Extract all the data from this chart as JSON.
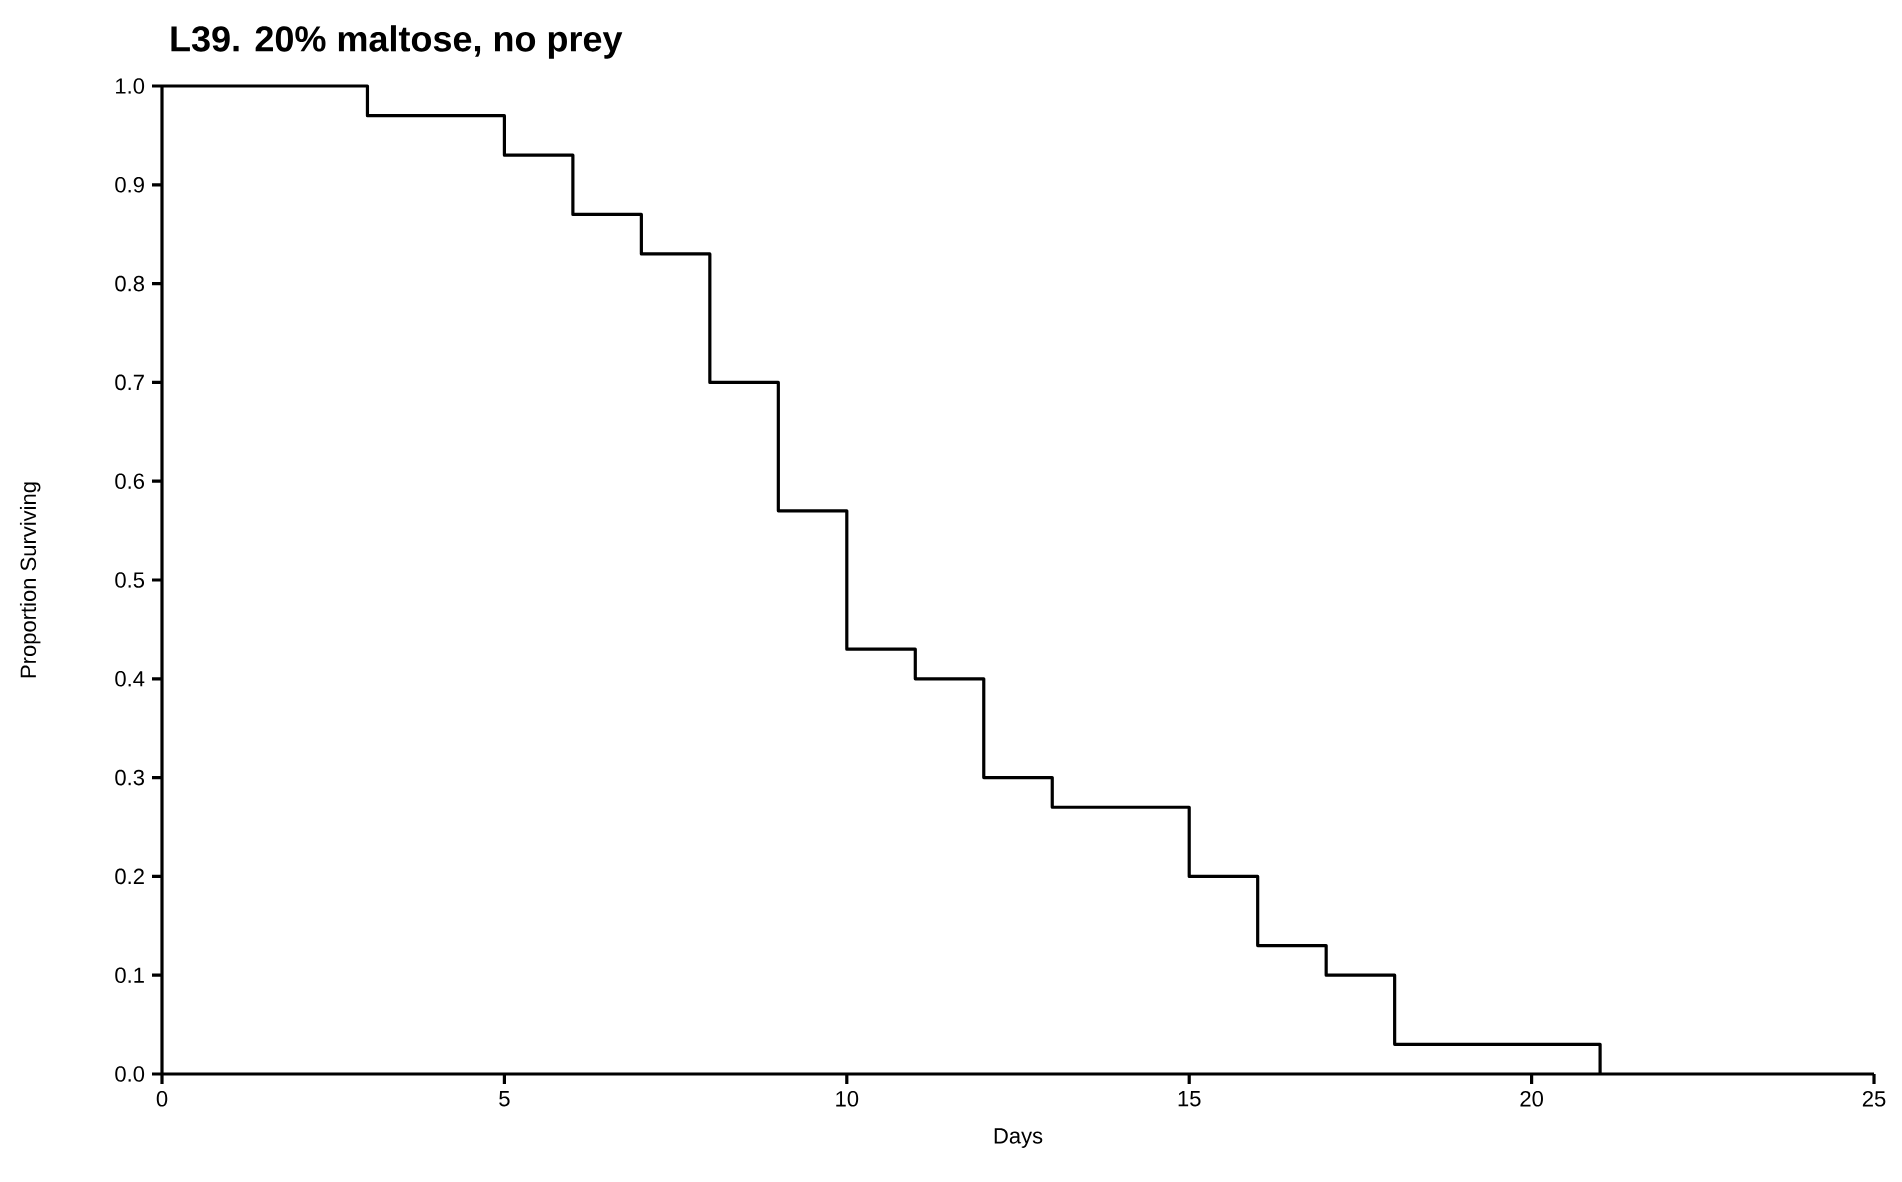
{
  "chart_data": {
    "type": "step",
    "title": "L39. 20% maltose, no prey",
    "xlabel": "Days",
    "ylabel": "Proportion Surviving",
    "x": [
      0,
      3,
      5,
      6,
      7,
      8,
      9,
      10,
      11,
      12,
      13,
      15,
      16,
      17,
      18,
      21
    ],
    "series": [
      {
        "color": "#000000",
        "values": [
          1.0,
          0.97,
          0.93,
          0.87,
          0.83,
          0.7,
          0.57,
          0.43,
          0.4,
          0.3,
          0.27,
          0.2,
          0.13,
          0.1,
          0.03,
          0
        ]
      }
    ],
    "xlim": [
      0,
      25
    ],
    "xticks": [
      0,
      5,
      10,
      15,
      20,
      25
    ],
    "ylim": [
      0,
      1
    ],
    "yticks": [
      {
        "value": 0,
        "label": "0.0"
      },
      0.1,
      0.2,
      0.3,
      0.4,
      0.5,
      0.6,
      0.7,
      0.8,
      0.9,
      {
        "value": 1,
        "label": "1.0"
      }
    ],
    "grid": false,
    "legend": false,
    "marker": "none",
    "line_style": "solid"
  }
}
